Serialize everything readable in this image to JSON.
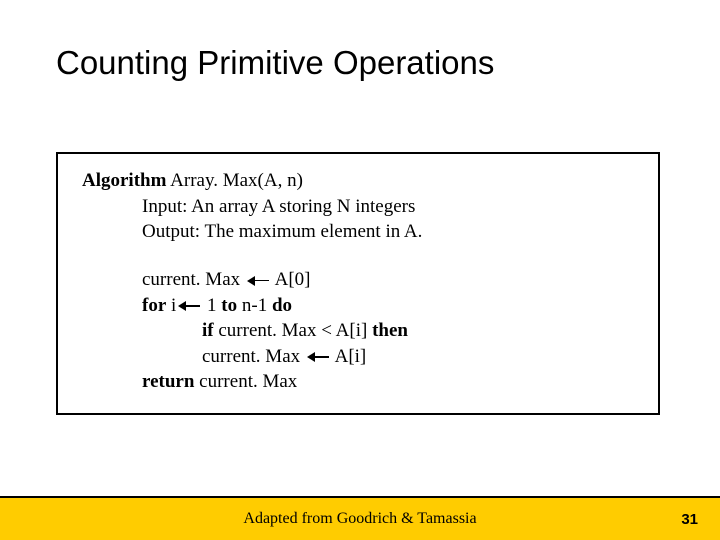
{
  "title": "Counting Primitive Operations",
  "algorithm": {
    "header_bold": "Algorithm",
    "header_rest": " Array. Max(A, n)",
    "input": "Input: An array A storing N integers",
    "output": "Output: The maximum element in A.",
    "line1_a": "current. Max ",
    "line1_b": " A[0]",
    "line2_for": "for",
    "line2_mid": " i",
    "line2_after": " 1 ",
    "line2_to": "to",
    "line2_n": " n-1 ",
    "line2_do": "do",
    "line3_if": "if",
    "line3_rest": " current. Max < A[i] ",
    "line3_then": "then",
    "line4_a": "current. Max ",
    "line4_b": " A[i]",
    "line5_return": "return",
    "line5_rest": " current. Max"
  },
  "footer": {
    "credit": "Adapted from Goodrich & Tamassia",
    "page": "31",
    "bar_color": "#ffcc00"
  }
}
